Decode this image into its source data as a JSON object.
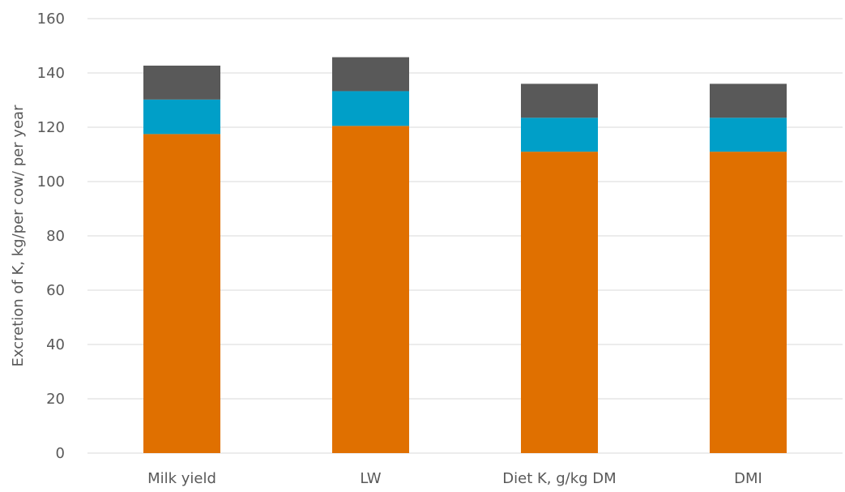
{
  "chart_data": {
    "type": "bar",
    "stacked": true,
    "title": "",
    "xlabel": "",
    "ylabel": "Excretion of K, kg/per cow/ per year",
    "ylim": [
      0,
      160
    ],
    "yticks": [
      0,
      20,
      40,
      60,
      80,
      100,
      120,
      140,
      160
    ],
    "grid": true,
    "legend": "none",
    "categories": [
      "Milk yield",
      "LW",
      "Diet K, g/kg DM",
      "DMI"
    ],
    "series": [
      {
        "color": "#e07000",
        "values": [
          117.5,
          120.5,
          111,
          111
        ]
      },
      {
        "color": "#009fc8",
        "values": [
          12.7,
          12.8,
          12.5,
          12.5
        ]
      },
      {
        "color": "#595959",
        "values": [
          12.5,
          12.5,
          12.5,
          12.5
        ]
      }
    ]
  }
}
